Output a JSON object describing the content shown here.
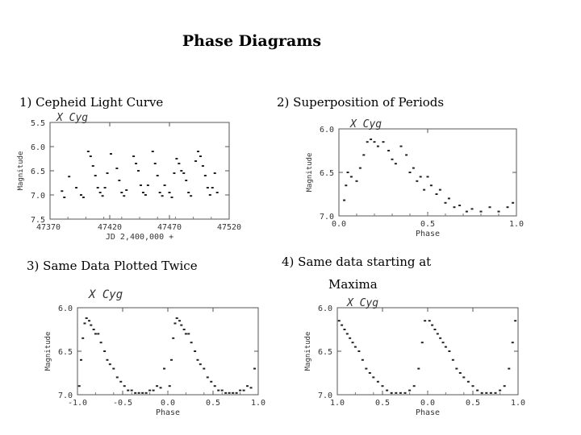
{
  "page_title": "Phase Diagrams",
  "captions": {
    "c1": "1) Cepheid Light Curve",
    "c2": "2) Superposition of Periods",
    "c3": "3) Same Data Plotted Twice",
    "c4_line1": "4) Same data starting at",
    "c4_line2": "Maxima"
  },
  "chart_data": [
    {
      "id": "p1",
      "type": "scatter",
      "title": "X Cyg",
      "xlabel": "JD 2,400,000 +",
      "ylabel": "Magnitude",
      "xlim": [
        47370,
        47520
      ],
      "ylim": [
        7.5,
        5.5
      ],
      "yinvert": true,
      "x_ticks": [
        47420,
        47470,
        47520
      ],
      "x_tick_labels": [
        "47420",
        "47470",
        "47520"
      ],
      "x_first_label": "47370",
      "y_ticks": [
        5.5,
        6.0,
        6.5,
        7.0,
        7.5
      ],
      "y_tick_labels": [
        "5.5",
        "6.0",
        "6.5",
        "7.0",
        "7.5"
      ],
      "points": [
        [
          47380,
          6.92
        ],
        [
          47382,
          7.05
        ],
        [
          47386,
          6.62
        ],
        [
          47392,
          6.85
        ],
        [
          47396,
          7.0
        ],
        [
          47398,
          7.05
        ],
        [
          47402,
          6.1
        ],
        [
          47404,
          6.2
        ],
        [
          47406,
          6.4
        ],
        [
          47408,
          6.6
        ],
        [
          47410,
          6.85
        ],
        [
          47412,
          6.95
        ],
        [
          47414,
          7.02
        ],
        [
          47416,
          6.85
        ],
        [
          47418,
          6.55
        ],
        [
          47421,
          6.15
        ],
        [
          47426,
          6.45
        ],
        [
          47428,
          6.7
        ],
        [
          47430,
          6.95
        ],
        [
          47432,
          7.02
        ],
        [
          47434,
          6.9
        ],
        [
          47440,
          6.2
        ],
        [
          47442,
          6.35
        ],
        [
          47444,
          6.5
        ],
        [
          47446,
          6.8
        ],
        [
          47448,
          6.95
        ],
        [
          47450,
          7.0
        ],
        [
          47452,
          6.8
        ],
        [
          47456,
          6.1
        ],
        [
          47458,
          6.35
        ],
        [
          47460,
          6.6
        ],
        [
          47462,
          6.95
        ],
        [
          47464,
          7.02
        ],
        [
          47466,
          6.8
        ],
        [
          47470,
          6.95
        ],
        [
          47472,
          7.05
        ],
        [
          47474,
          6.55
        ],
        [
          47476,
          6.25
        ],
        [
          47478,
          6.35
        ],
        [
          47480,
          6.5
        ],
        [
          47482,
          6.55
        ],
        [
          47484,
          6.7
        ],
        [
          47486,
          6.95
        ],
        [
          47488,
          7.02
        ],
        [
          47492,
          6.3
        ],
        [
          47494,
          6.1
        ],
        [
          47496,
          6.2
        ],
        [
          47498,
          6.4
        ],
        [
          47500,
          6.6
        ],
        [
          47502,
          6.85
        ],
        [
          47504,
          7.0
        ],
        [
          47506,
          6.85
        ],
        [
          47508,
          6.55
        ],
        [
          47510,
          6.95
        ]
      ]
    },
    {
      "id": "p2",
      "type": "scatter",
      "title": "X Cyg",
      "xlabel": "Phase",
      "ylabel": "Magnitude",
      "xlim": [
        0.0,
        1.0
      ],
      "ylim": [
        7.0,
        6.0
      ],
      "yinvert": true,
      "x_ticks": [
        0.0,
        0.5,
        1.0
      ],
      "x_tick_labels": [
        "0.0",
        "0.5",
        "1.0"
      ],
      "y_ticks": [
        6.0,
        6.5,
        7.0
      ],
      "y_tick_labels": [
        "6.0",
        "6.5",
        "7.0"
      ],
      "points": [
        [
          0.03,
          6.82
        ],
        [
          0.04,
          6.65
        ],
        [
          0.05,
          6.5
        ],
        [
          0.07,
          6.55
        ],
        [
          0.1,
          6.6
        ],
        [
          0.12,
          6.45
        ],
        [
          0.14,
          6.3
        ],
        [
          0.16,
          6.15
        ],
        [
          0.18,
          6.12
        ],
        [
          0.2,
          6.15
        ],
        [
          0.22,
          6.2
        ],
        [
          0.25,
          6.15
        ],
        [
          0.28,
          6.25
        ],
        [
          0.3,
          6.35
        ],
        [
          0.32,
          6.4
        ],
        [
          0.35,
          6.2
        ],
        [
          0.38,
          6.3
        ],
        [
          0.4,
          6.5
        ],
        [
          0.42,
          6.45
        ],
        [
          0.44,
          6.6
        ],
        [
          0.46,
          6.55
        ],
        [
          0.48,
          6.7
        ],
        [
          0.5,
          6.55
        ],
        [
          0.52,
          6.65
        ],
        [
          0.55,
          6.75
        ],
        [
          0.57,
          6.7
        ],
        [
          0.6,
          6.85
        ],
        [
          0.62,
          6.8
        ],
        [
          0.65,
          6.9
        ],
        [
          0.68,
          6.88
        ],
        [
          0.72,
          6.95
        ],
        [
          0.75,
          6.92
        ],
        [
          0.8,
          6.95
        ],
        [
          0.85,
          6.9
        ],
        [
          0.9,
          6.95
        ],
        [
          0.95,
          6.9
        ],
        [
          0.98,
          6.85
        ]
      ]
    },
    {
      "id": "p3",
      "type": "scatter",
      "title": "X Cyg",
      "xlabel": "Phase",
      "ylabel": "Magnitude",
      "xlim": [
        -1.0,
        1.0
      ],
      "ylim": [
        7.0,
        6.0
      ],
      "yinvert": true,
      "x_ticks": [
        -1.0,
        -0.5,
        0.0,
        0.5,
        1.0
      ],
      "x_tick_labels": [
        "-1.0",
        "-0.5",
        "0.0",
        "0.5",
        "1.0"
      ],
      "y_ticks": [
        6.0,
        6.5,
        7.0
      ],
      "y_tick_labels": [
        "6.0",
        "6.5",
        "7.0"
      ],
      "points": [
        [
          -0.98,
          6.9
        ],
        [
          -0.96,
          6.6
        ],
        [
          -0.94,
          6.35
        ],
        [
          -0.92,
          6.18
        ],
        [
          -0.9,
          6.12
        ],
        [
          -0.87,
          6.15
        ],
        [
          -0.85,
          6.2
        ],
        [
          -0.82,
          6.25
        ],
        [
          -0.8,
          6.3
        ],
        [
          -0.77,
          6.3
        ],
        [
          -0.74,
          6.4
        ],
        [
          -0.7,
          6.5
        ],
        [
          -0.67,
          6.6
        ],
        [
          -0.64,
          6.65
        ],
        [
          -0.6,
          6.7
        ],
        [
          -0.56,
          6.8
        ],
        [
          -0.52,
          6.85
        ],
        [
          -0.48,
          6.9
        ],
        [
          -0.44,
          6.95
        ],
        [
          -0.4,
          6.95
        ],
        [
          -0.36,
          6.98
        ],
        [
          -0.32,
          6.98
        ],
        [
          -0.28,
          6.98
        ],
        [
          -0.24,
          6.98
        ],
        [
          -0.2,
          6.95
        ],
        [
          -0.16,
          6.95
        ],
        [
          -0.12,
          6.9
        ],
        [
          -0.08,
          6.92
        ],
        [
          -0.04,
          6.7
        ],
        [
          0.02,
          6.9
        ],
        [
          0.04,
          6.6
        ],
        [
          0.06,
          6.35
        ],
        [
          0.08,
          6.18
        ],
        [
          0.1,
          6.12
        ],
        [
          0.13,
          6.15
        ],
        [
          0.15,
          6.2
        ],
        [
          0.18,
          6.25
        ],
        [
          0.2,
          6.3
        ],
        [
          0.23,
          6.3
        ],
        [
          0.26,
          6.4
        ],
        [
          0.3,
          6.5
        ],
        [
          0.33,
          6.6
        ],
        [
          0.36,
          6.65
        ],
        [
          0.4,
          6.7
        ],
        [
          0.44,
          6.8
        ],
        [
          0.48,
          6.85
        ],
        [
          0.52,
          6.9
        ],
        [
          0.56,
          6.95
        ],
        [
          0.6,
          6.95
        ],
        [
          0.64,
          6.98
        ],
        [
          0.68,
          6.98
        ],
        [
          0.72,
          6.98
        ],
        [
          0.76,
          6.98
        ],
        [
          0.8,
          6.95
        ],
        [
          0.84,
          6.95
        ],
        [
          0.88,
          6.9
        ],
        [
          0.92,
          6.92
        ],
        [
          0.96,
          6.7
        ]
      ]
    },
    {
      "id": "p4",
      "type": "scatter",
      "title": "X Cyg",
      "xlabel": "Phase",
      "ylabel": "Magnitude",
      "xlim": [
        -1.0,
        1.0
      ],
      "ylim": [
        7.0,
        6.0
      ],
      "yinvert": true,
      "x_ticks": [
        -1.0,
        -0.5,
        0.0,
        0.5,
        1.0
      ],
      "x_tick_labels": [
        "1.0",
        "0.5",
        "0.0",
        "0.5",
        "1.0"
      ],
      "y_ticks": [
        6.0,
        6.5,
        7.0
      ],
      "y_tick_labels": [
        "6.0",
        "6.5",
        "7.0"
      ],
      "points": [
        [
          -0.98,
          6.15
        ],
        [
          -0.95,
          6.2
        ],
        [
          -0.92,
          6.25
        ],
        [
          -0.89,
          6.3
        ],
        [
          -0.86,
          6.35
        ],
        [
          -0.83,
          6.4
        ],
        [
          -0.8,
          6.45
        ],
        [
          -0.76,
          6.5
        ],
        [
          -0.72,
          6.6
        ],
        [
          -0.68,
          6.7
        ],
        [
          -0.64,
          6.75
        ],
        [
          -0.6,
          6.8
        ],
        [
          -0.55,
          6.85
        ],
        [
          -0.5,
          6.9
        ],
        [
          -0.45,
          6.95
        ],
        [
          -0.4,
          6.98
        ],
        [
          -0.35,
          6.98
        ],
        [
          -0.3,
          6.98
        ],
        [
          -0.25,
          6.98
        ],
        [
          -0.2,
          6.95
        ],
        [
          -0.15,
          6.9
        ],
        [
          -0.1,
          6.7
        ],
        [
          -0.06,
          6.4
        ],
        [
          -0.03,
          6.15
        ],
        [
          0.02,
          6.15
        ],
        [
          0.05,
          6.2
        ],
        [
          0.08,
          6.25
        ],
        [
          0.11,
          6.3
        ],
        [
          0.14,
          6.35
        ],
        [
          0.17,
          6.4
        ],
        [
          0.2,
          6.45
        ],
        [
          0.24,
          6.5
        ],
        [
          0.28,
          6.6
        ],
        [
          0.32,
          6.7
        ],
        [
          0.36,
          6.75
        ],
        [
          0.4,
          6.8
        ],
        [
          0.45,
          6.85
        ],
        [
          0.5,
          6.9
        ],
        [
          0.55,
          6.95
        ],
        [
          0.6,
          6.98
        ],
        [
          0.65,
          6.98
        ],
        [
          0.7,
          6.98
        ],
        [
          0.75,
          6.98
        ],
        [
          0.8,
          6.95
        ],
        [
          0.85,
          6.9
        ],
        [
          0.9,
          6.7
        ],
        [
          0.94,
          6.4
        ],
        [
          0.97,
          6.15
        ]
      ]
    }
  ]
}
